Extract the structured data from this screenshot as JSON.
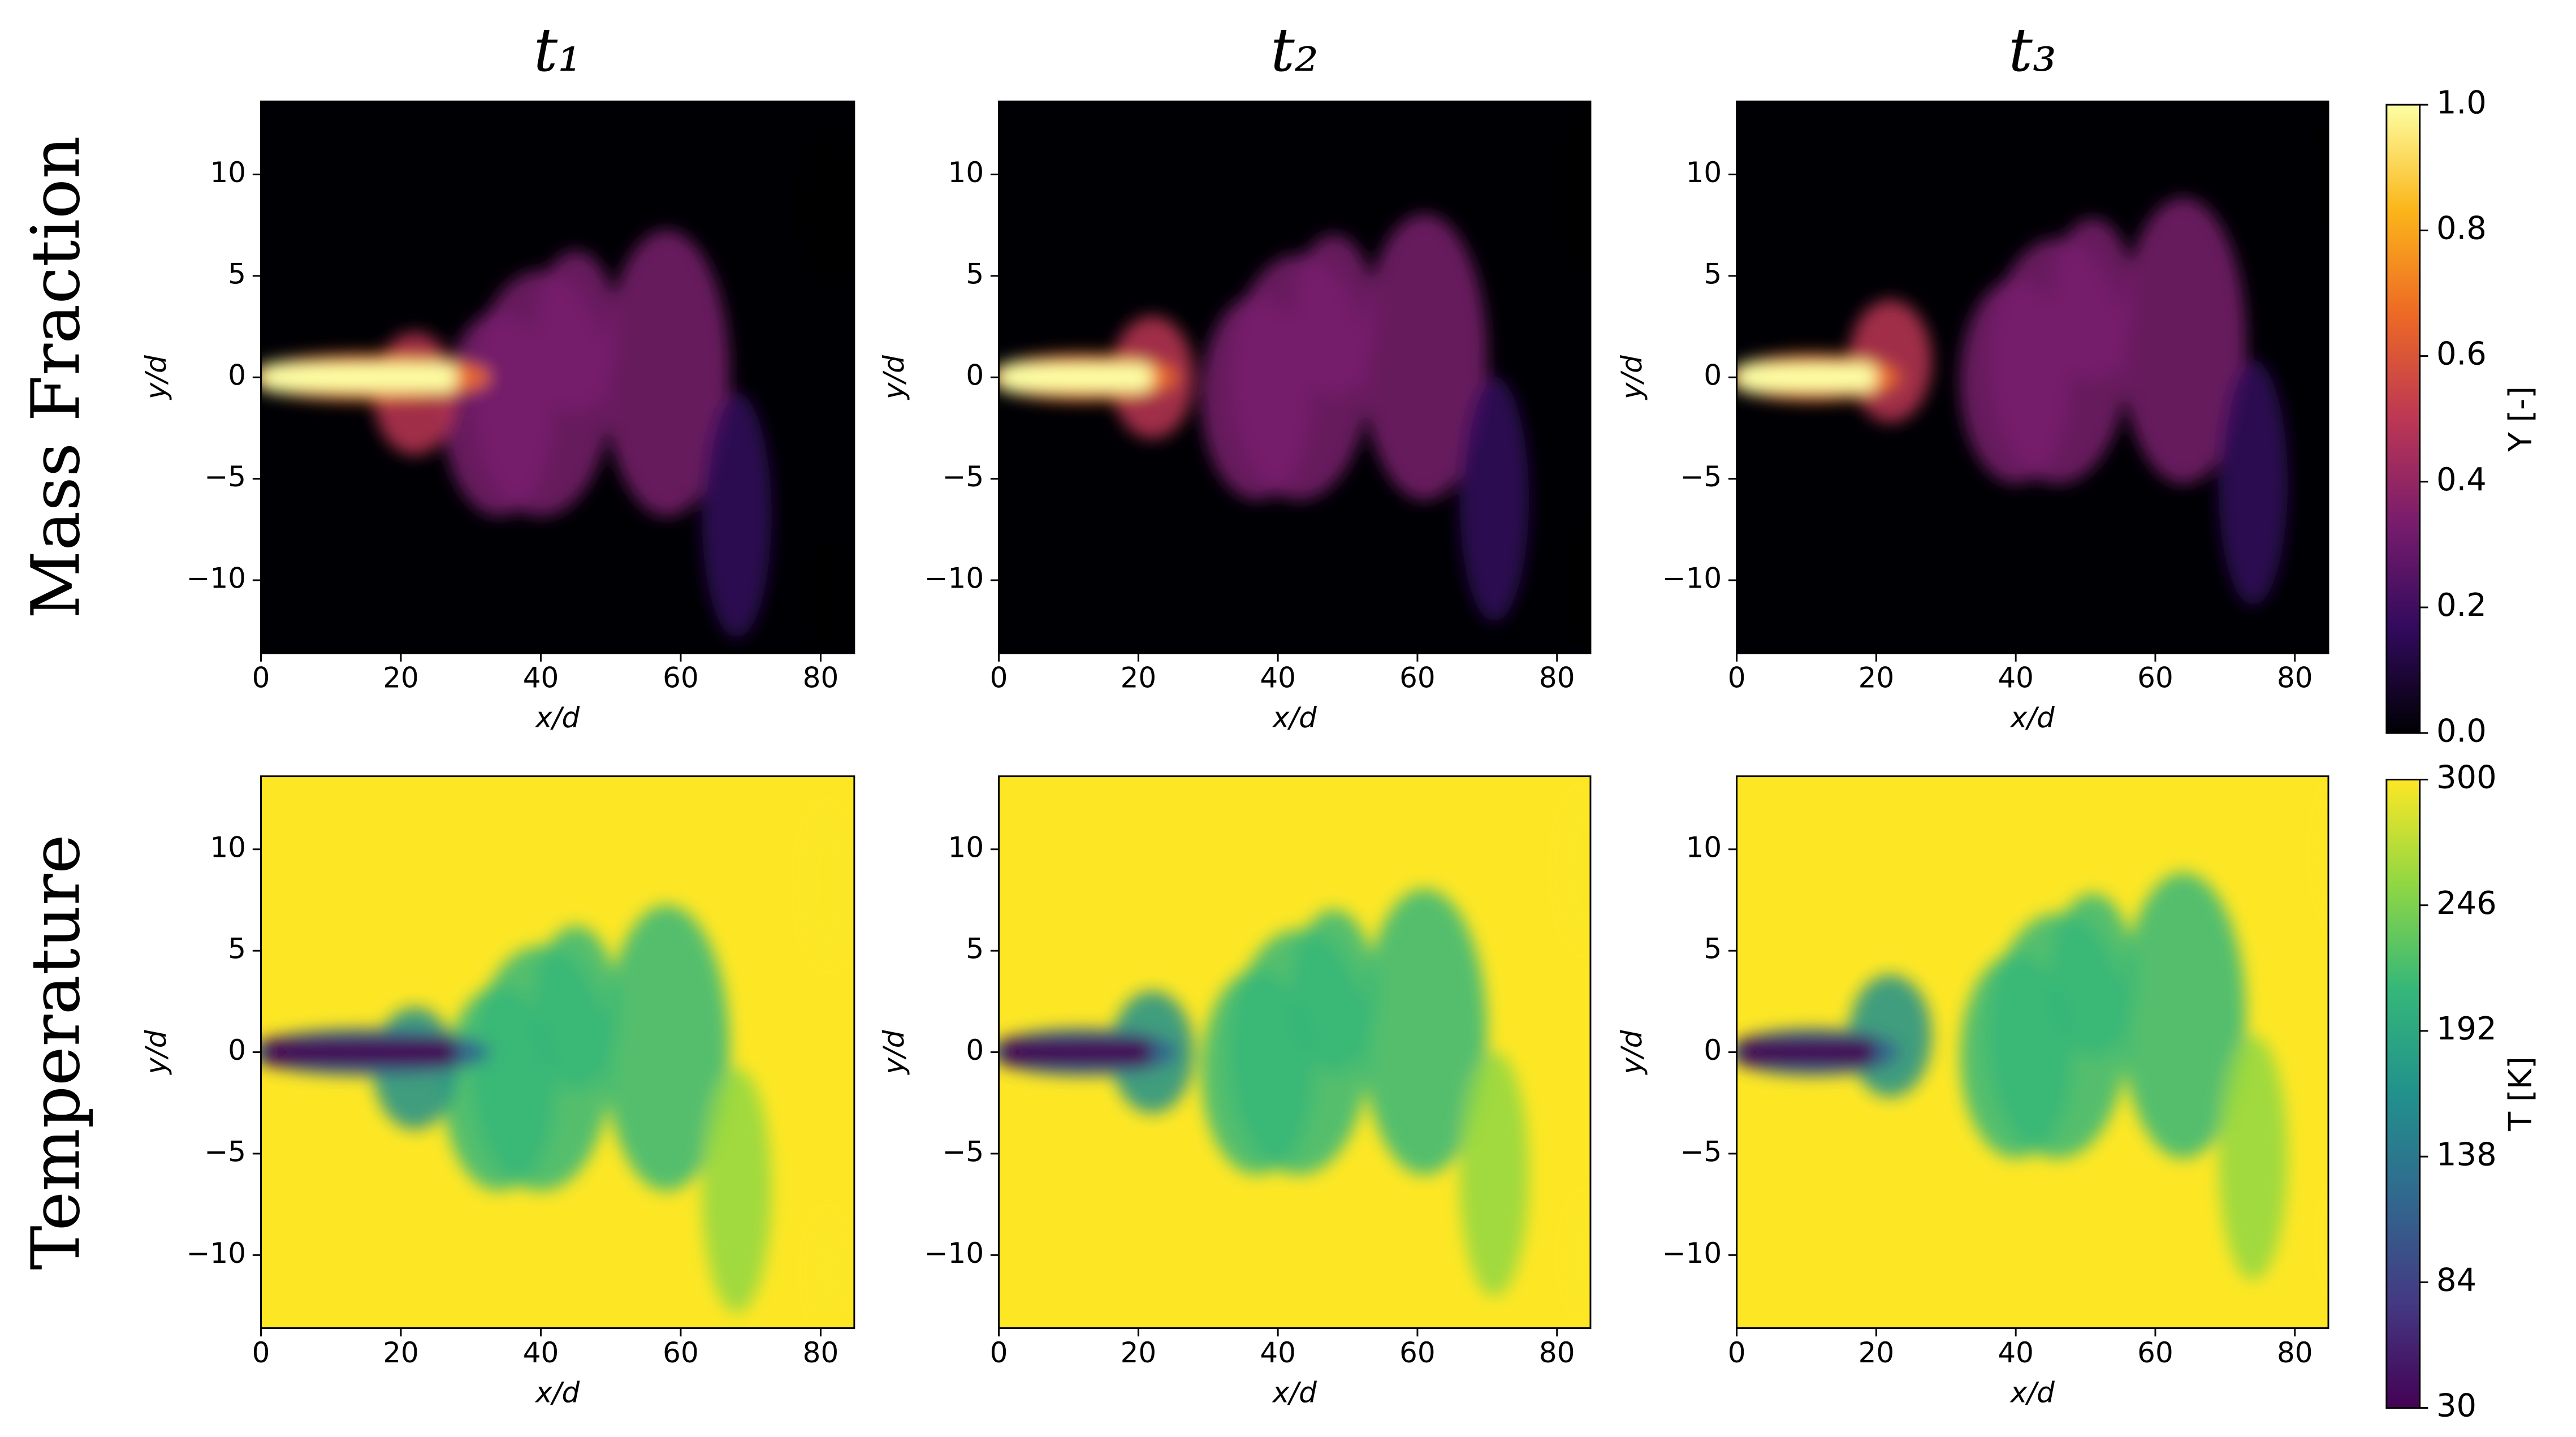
{
  "chart_data": [
    {
      "type": "heatmap",
      "title": "t₁",
      "row_label": "Mass Fraction",
      "xlabel": "x/d",
      "ylabel": "y/d",
      "xlim": [
        0,
        84.8
      ],
      "ylim": [
        -13.6,
        13.6
      ],
      "xticks": [
        0,
        20,
        40,
        60,
        80
      ],
      "yticks": [
        {
          "value": -10,
          "label": "−10"
        },
        {
          "value": -5,
          "label": "−5"
        },
        0,
        5,
        10
      ]
    },
    {
      "type": "heatmap",
      "title": "t₂",
      "xlabel": "x/d",
      "ylabel": "y/d",
      "xlim": [
        0,
        84.8
      ],
      "ylim": [
        -13.6,
        13.6
      ],
      "xticks": [
        0,
        20,
        40,
        60,
        80
      ],
      "yticks": [
        {
          "value": -10,
          "label": "−10"
        },
        {
          "value": -5,
          "label": "−5"
        },
        0,
        5,
        10
      ]
    },
    {
      "type": "heatmap",
      "title": "t₃",
      "xlabel": "x/d",
      "ylabel": "y/d",
      "xlim": [
        0,
        84.8
      ],
      "ylim": [
        -13.6,
        13.6
      ],
      "xticks": [
        0,
        20,
        40,
        60,
        80
      ],
      "yticks": [
        {
          "value": -10,
          "label": "−10"
        },
        {
          "value": -5,
          "label": "−5"
        },
        0,
        5,
        10
      ]
    },
    {
      "type": "heatmap",
      "row_label": "Temperature",
      "xlabel": "x/d",
      "ylabel": "y/d",
      "xlim": [
        0,
        84.8
      ],
      "ylim": [
        -13.6,
        13.6
      ],
      "xticks": [
        0,
        20,
        40,
        60,
        80
      ],
      "yticks": [
        {
          "value": -10,
          "label": "−10"
        },
        {
          "value": -5,
          "label": "−5"
        },
        0,
        5,
        10
      ]
    },
    {
      "type": "heatmap",
      "xlabel": "x/d",
      "ylabel": "y/d",
      "xlim": [
        0,
        84.8
      ],
      "ylim": [
        -13.6,
        13.6
      ],
      "xticks": [
        0,
        20,
        40,
        60,
        80
      ],
      "yticks": [
        {
          "value": -10,
          "label": "−10"
        },
        {
          "value": -5,
          "label": "−5"
        },
        0,
        5,
        10
      ]
    },
    {
      "type": "heatmap",
      "xlabel": "x/d",
      "ylabel": "y/d",
      "xlim": [
        0,
        84.8
      ],
      "ylim": [
        -13.6,
        13.6
      ],
      "xticks": [
        0,
        20,
        40,
        60,
        80
      ],
      "yticks": [
        {
          "value": -10,
          "label": "−10"
        },
        {
          "value": -5,
          "label": "−5"
        },
        0,
        5,
        10
      ]
    },
    {
      "type": "colorbar",
      "label": "Y [-]",
      "ylim": [
        0,
        1
      ],
      "yticks": [
        {
          "value": 0,
          "label": "0.0"
        },
        0.2,
        0.4,
        0.6,
        0.8,
        {
          "value": 1,
          "label": "1.0"
        }
      ],
      "colors": [
        "#000004",
        "#320a5e",
        "#781c6d",
        "#bc3754",
        "#ed6925",
        "#fbb61a",
        "#fcffa4"
      ]
    },
    {
      "type": "colorbar",
      "label": "T [K]",
      "ylim": [
        30,
        300
      ],
      "yticks": [
        30,
        84,
        138,
        192,
        246,
        300
      ],
      "colors": [
        "#440154",
        "#443983",
        "#31688e",
        "#21918c",
        "#35b779",
        "#90d743",
        "#fde725"
      ]
    }
  ]
}
